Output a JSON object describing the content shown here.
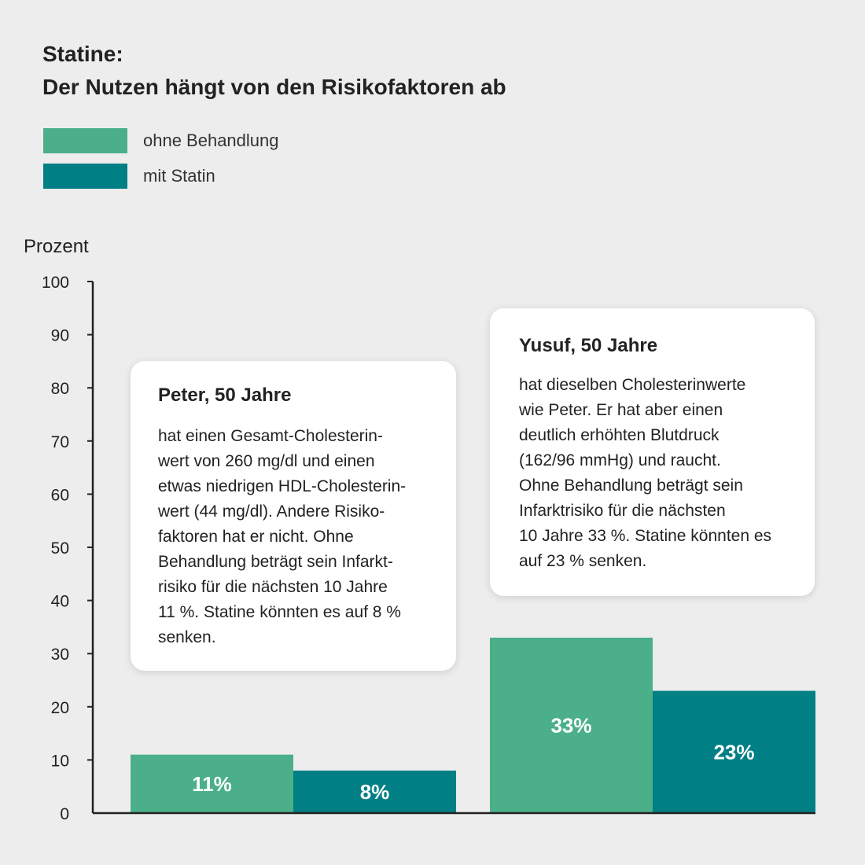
{
  "title": {
    "line1": "Statine:",
    "line2": "Der Nutzen hängt von den Risikofaktoren ab"
  },
  "legend": [
    {
      "label": "ohne Behandlung",
      "color": "#4bb08a"
    },
    {
      "label": "mit Statin",
      "color": "#007f84"
    }
  ],
  "y_axis_title": "Prozent",
  "callouts": {
    "peter": {
      "heading": "Peter, 50 Jahre",
      "body": "hat einen Gesamt-Cholesterin-\nwert von 260 mg/dl und einen\netwas niedrigen HDL-Cholesterin-\nwert (44 mg/dl). Andere Risiko-\nfaktoren hat er nicht. Ohne\nBehandlung beträgt sein Infarkt-\nrisiko für die nächsten 10 Jahre\n11 %. Statine könnten es auf 8 %\nsenken."
    },
    "yusuf": {
      "heading": "Yusuf, 50 Jahre",
      "body": "hat dieselben Cholesterinwerte\nwie Peter. Er hat aber einen\ndeutlich erhöhten Blutdruck\n(162/96 mmHg) und raucht.\nOhne Behandlung beträgt sein\nInfarktrisiko für die nächsten\n10 Jahre 33 %. Statine könnten es\nauf 23 % senken."
    }
  },
  "chart_data": {
    "type": "bar",
    "title": "Statine: Der Nutzen hängt von den Risikofaktoren ab",
    "ylabel": "Prozent",
    "xlabel": "",
    "ylim": [
      0,
      100
    ],
    "yticks": [
      0,
      10,
      20,
      30,
      40,
      50,
      60,
      70,
      80,
      90,
      100
    ],
    "groups": [
      "Peter",
      "Yusuf"
    ],
    "series": [
      {
        "name": "ohne Behandlung",
        "values": [
          11,
          33
        ],
        "labels": [
          "11%",
          "33%"
        ],
        "color": "#4bb08a"
      },
      {
        "name": "mit Statin",
        "values": [
          8,
          23
        ],
        "labels": [
          "8%",
          "23%"
        ],
        "color": "#007f84"
      }
    ],
    "legend": "top-left",
    "grid": false
  }
}
